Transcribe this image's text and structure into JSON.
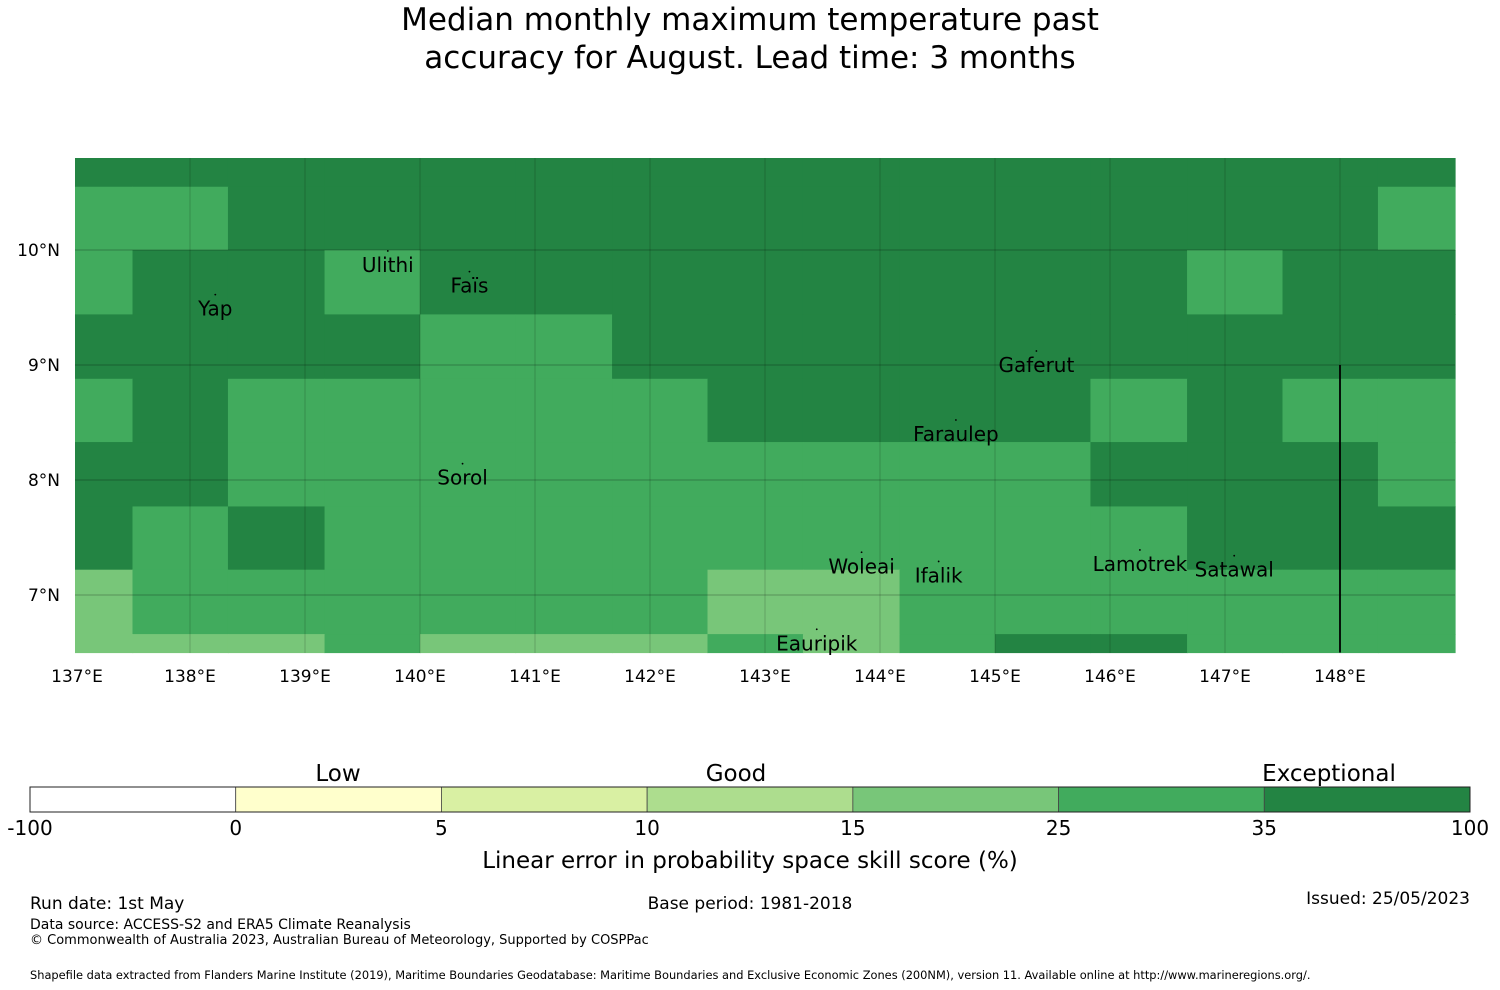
{
  "title": {
    "line1": "Median monthly maximum temperature past",
    "line2": "accuracy for August. Lead time: 3 months"
  },
  "map": {
    "lon_range": [
      137,
      149
    ],
    "lat_range": [
      6.5,
      10.8
    ],
    "lon_ticks": [
      "137°E",
      "138°E",
      "139°E",
      "140°E",
      "141°E",
      "142°E",
      "143°E",
      "144°E",
      "145°E",
      "146°E",
      "147°E",
      "148°E"
    ],
    "lat_ticks": [
      "10°N",
      "9°N",
      "8°N",
      "7°N"
    ],
    "places": [
      {
        "name": "Ulithi",
        "lon": 139.72,
        "lat": 9.87
      },
      {
        "name": "Faïs",
        "lon": 140.43,
        "lat": 9.69
      },
      {
        "name": "Yap",
        "lon": 138.22,
        "lat": 9.49
      },
      {
        "name": "Gaferut",
        "lon": 145.36,
        "lat": 9.0
      },
      {
        "name": "Faraulep",
        "lon": 144.66,
        "lat": 8.4
      },
      {
        "name": "Sorol",
        "lon": 140.37,
        "lat": 8.02
      },
      {
        "name": "Woleai",
        "lon": 143.84,
        "lat": 7.25
      },
      {
        "name": "Ifalik",
        "lon": 144.51,
        "lat": 7.17
      },
      {
        "name": "Lamotrek",
        "lon": 146.26,
        "lat": 7.27
      },
      {
        "name": "Satawal",
        "lon": 147.08,
        "lat": 7.22
      },
      {
        "name": "Eauripik",
        "lon": 143.45,
        "lat": 6.58
      }
    ],
    "cell_lon_edges": [
      137.0,
      137.5,
      138.33,
      139.17,
      140.0,
      140.83,
      141.67,
      142.5,
      143.33,
      144.17,
      145.0,
      145.83,
      146.67,
      147.5,
      148.33,
      149.0
    ],
    "cell_lat_edges": [
      10.8,
      10.55,
      10.0,
      9.44,
      8.88,
      8.33,
      7.77,
      7.22,
      6.66,
      6.5
    ],
    "cell_classes": [
      [
        6,
        6,
        6,
        6,
        6,
        6,
        6,
        6,
        6,
        6,
        6,
        6,
        6,
        6,
        6
      ],
      [
        5,
        5,
        6,
        6,
        6,
        6,
        6,
        6,
        6,
        6,
        6,
        6,
        6,
        6,
        5
      ],
      [
        5,
        6,
        6,
        5,
        6,
        6,
        6,
        6,
        6,
        6,
        6,
        6,
        5,
        6,
        6
      ],
      [
        6,
        6,
        6,
        6,
        5,
        5,
        6,
        6,
        6,
        6,
        6,
        6,
        6,
        6,
        6
      ],
      [
        5,
        6,
        5,
        5,
        5,
        5,
        5,
        6,
        6,
        6,
        6,
        5,
        6,
        5,
        5
      ],
      [
        6,
        6,
        5,
        5,
        5,
        5,
        5,
        5,
        5,
        5,
        5,
        6,
        6,
        6,
        5
      ],
      [
        6,
        5,
        6,
        5,
        5,
        5,
        5,
        5,
        5,
        5,
        5,
        5,
        6,
        6,
        6
      ],
      [
        4,
        5,
        5,
        5,
        5,
        5,
        5,
        4,
        4,
        5,
        5,
        5,
        5,
        5,
        5
      ],
      [
        4,
        4,
        4,
        5,
        4,
        4,
        4,
        5,
        4,
        5,
        6,
        6,
        5,
        5,
        5
      ]
    ],
    "boundary_line": {
      "lon": 148.0,
      "lat_from": 6.5,
      "lat_to": 9.0
    }
  },
  "legend": {
    "labels": [
      "-100",
      "0",
      "5",
      "10",
      "15",
      "25",
      "35",
      "100"
    ],
    "colors": [
      "#ffffff",
      "#ffffcc",
      "#d9f0a3",
      "#addd8e",
      "#78c679",
      "#41ab5d",
      "#238443"
    ],
    "categories": [
      "Low",
      "Good",
      "Exceptional"
    ],
    "axis_label": "Linear error in probability space skill score (%)"
  },
  "footer": {
    "run_date": "Run date: 1st May",
    "base_period": "Base period: 1981-2018",
    "issued": "Issued: 25/05/2023",
    "data_source": "Data source: ACCESS-S2 and ERA5 Climate Reanalysis",
    "copyright": "© Commonwealth of Australia 2023, Australian Bureau of Meteorology, Supported by COSPPac",
    "shapefile": "Shapefile data extracted from Flanders Marine Institute (2019), Maritime Boundaries Geodatabase: Maritime Boundaries and Exclusive Economic Zones (200NM), version 11. Available online at http://www.marineregions.org/."
  }
}
